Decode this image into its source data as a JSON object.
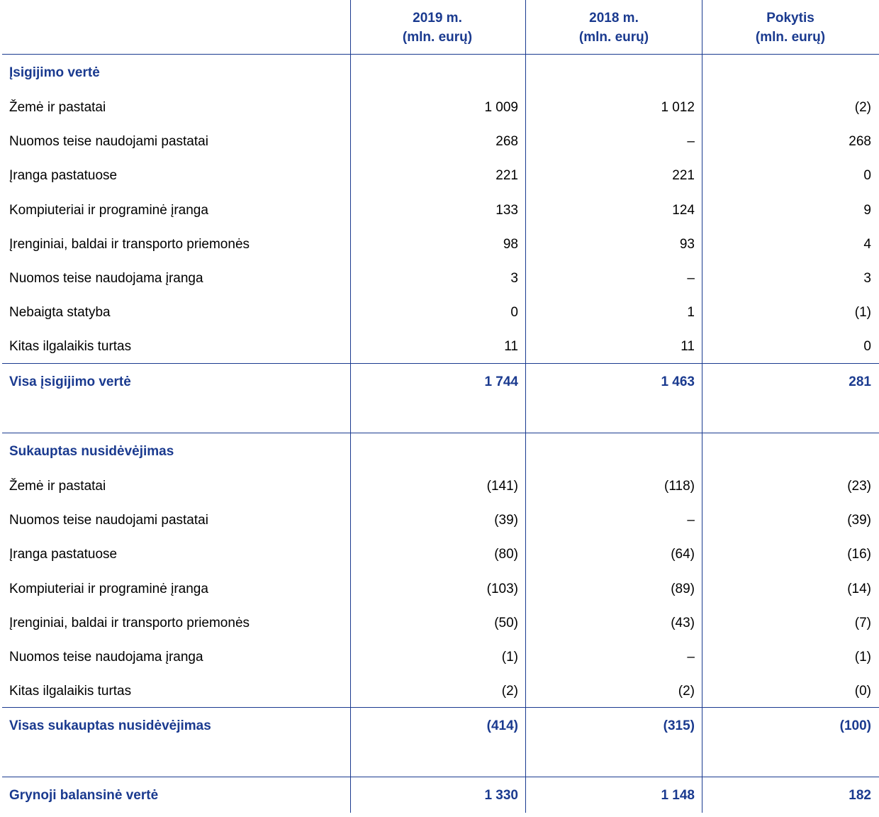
{
  "header": {
    "columns": [
      {
        "line1": "2019 m.",
        "line2": "(mln. eurų)"
      },
      {
        "line1": "2018 m.",
        "line2": "(mln. eurų)"
      },
      {
        "line1": "Pokytis",
        "line2": "(mln. eurų)"
      }
    ]
  },
  "sections": [
    {
      "title": "Įsigijimo vertė",
      "rows": [
        [
          "Žemė ir pastatai",
          "1 009",
          "1 012",
          "(2)"
        ],
        [
          "Nuomos teise naudojami pastatai",
          "268",
          "–",
          "268"
        ],
        [
          "Įranga pastatuose",
          "221",
          "221",
          "0"
        ],
        [
          "Kompiuteriai ir programinė įranga",
          "133",
          "124",
          "9"
        ],
        [
          "Įrenginiai, baldai ir transporto priemonės",
          "98",
          "93",
          "4"
        ],
        [
          "Nuomos teise naudojama įranga",
          "3",
          "–",
          "3"
        ],
        [
          "Nebaigta statyba",
          "0",
          "1",
          "(1)"
        ],
        [
          "Kitas ilgalaikis turtas",
          "11",
          "11",
          "0"
        ]
      ],
      "total": [
        "Visa įsigijimo vertė",
        "1 744",
        "1 463",
        "281"
      ]
    },
    {
      "title": "Sukauptas nusidėvėjimas",
      "rows": [
        [
          "Žemė ir pastatai",
          "(141)",
          "(118)",
          "(23)"
        ],
        [
          "Nuomos teise naudojami pastatai",
          "(39)",
          "–",
          "(39)"
        ],
        [
          "Įranga pastatuose",
          "(80)",
          "(64)",
          "(16)"
        ],
        [
          "Kompiuteriai ir programinė įranga",
          "(103)",
          "(89)",
          "(14)"
        ],
        [
          "Įrenginiai, baldai ir transporto priemonės",
          "(50)",
          "(43)",
          "(7)"
        ],
        [
          "Nuomos teise naudojama įranga",
          "(1)",
          "–",
          "(1)"
        ],
        [
          "Kitas ilgalaikis turtas",
          "(2)",
          "(2)",
          "(0)"
        ]
      ],
      "total": [
        "Visas sukauptas nusidėvėjimas",
        "(414)",
        "(315)",
        "(100)"
      ]
    }
  ],
  "net": [
    "Grynoji balansinė vertė",
    "1 330",
    "1 148",
    "182"
  ]
}
